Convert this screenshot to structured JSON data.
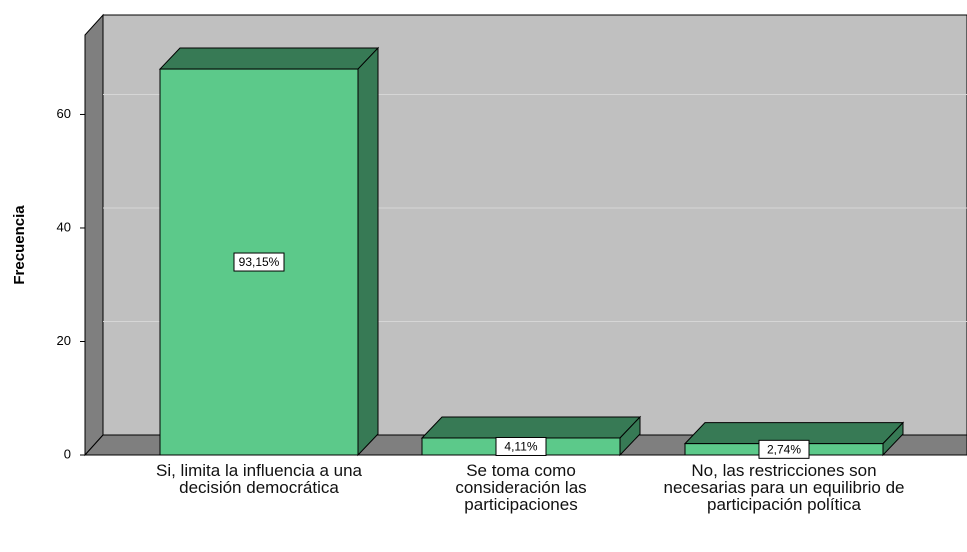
{
  "chart_data": {
    "type": "bar3d",
    "y_label": "Frecuencia",
    "categories": [
      "Si, limita la influencia a una decisión democrática",
      "Se toma como consideración las participaciones",
      "No, las restricciones son necesarias para un equilibrio de participación política"
    ],
    "values": [
      68,
      3,
      2
    ],
    "percent_values": [
      93.15,
      4.11,
      2.74
    ],
    "percent_labels": [
      "93,15%",
      "4,11%",
      "2,74%"
    ],
    "color": "#5cc98a",
    "side_color": "#377a55",
    "ylim": [
      0,
      74
    ],
    "yticks": [
      0,
      20,
      40,
      60
    ],
    "grid": true
  }
}
